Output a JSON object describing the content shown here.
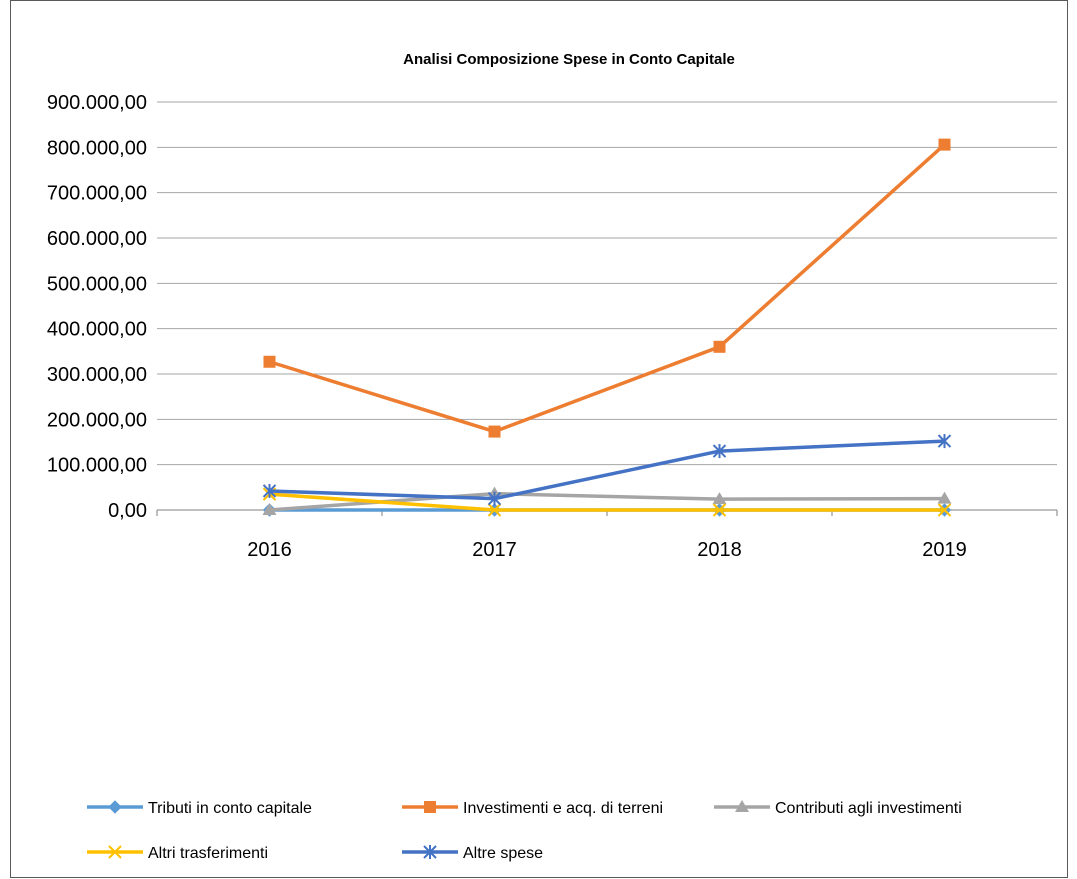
{
  "chart_data": {
    "type": "line",
    "title": "Analisi Composizione Spese in Conto Capitale",
    "xlabel": "",
    "ylabel": "",
    "categories": [
      "2016",
      "2017",
      "2018",
      "2019"
    ],
    "ylim": [
      0,
      900000
    ],
    "ytick_values": [
      0,
      100000,
      200000,
      300000,
      400000,
      500000,
      600000,
      700000,
      800000,
      900000
    ],
    "ytick_labels": [
      "0,00",
      "100.000,00",
      "200.000,00",
      "300.000,00",
      "400.000,00",
      "500.000,00",
      "600.000,00",
      "700.000,00",
      "800.000,00",
      "900.000,00"
    ],
    "grid": true,
    "legend_position": "bottom",
    "series": [
      {
        "name": "Tributi in conto capitale",
        "values": [
          0,
          0,
          0,
          0
        ],
        "color": "#5B9BD5",
        "marker": "diamond"
      },
      {
        "name": "Investimenti e acq. di terreni",
        "values": [
          327000,
          173000,
          360000,
          806000
        ],
        "color": "#ED7D31",
        "marker": "square"
      },
      {
        "name": "Contributi agli investimenti",
        "values": [
          0,
          36000,
          24000,
          25000
        ],
        "color": "#A5A5A5",
        "marker": "triangle"
      },
      {
        "name": "Altri trasferimenti",
        "values": [
          35000,
          0,
          0,
          0
        ],
        "color": "#FFC000",
        "marker": "x"
      },
      {
        "name": "Altre spese",
        "values": [
          42000,
          25000,
          130000,
          152000
        ],
        "color": "#4472C4",
        "marker": "star"
      }
    ]
  }
}
